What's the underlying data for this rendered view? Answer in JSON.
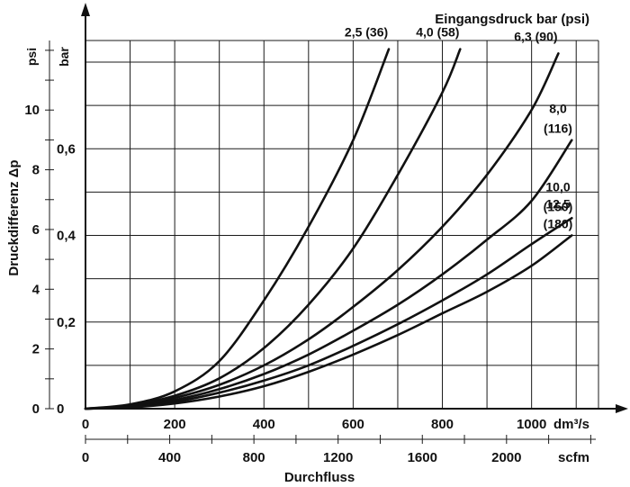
{
  "chart_data": {
    "type": "line",
    "title": "Eingangsdruck bar (psi)",
    "xlabel": "Durchfluss",
    "ylabel": "Druckdifferenz Δp",
    "x_primary": {
      "unit": "dm³/s",
      "range": [
        0,
        1150
      ],
      "ticks": [
        "0",
        "200",
        "400",
        "600",
        "800",
        "1000"
      ]
    },
    "x_secondary": {
      "unit": "scfm",
      "ticks": [
        "0",
        "400",
        "800",
        "1200",
        "1600",
        "2000"
      ]
    },
    "y_primary": {
      "unit": "bar",
      "range": [
        0,
        0.85
      ],
      "ticks": [
        "0",
        "0,2",
        "0,4",
        "0,6"
      ]
    },
    "y_secondary": {
      "unit": "psi",
      "ticks": [
        "0",
        "2",
        "4",
        "6",
        "8",
        "10"
      ]
    },
    "grid": true,
    "series": [
      {
        "name": "2,5 (36)",
        "name_lines": [
          "2,5 (36)"
        ],
        "x": [
          0,
          100,
          200,
          300,
          400,
          500,
          600,
          680
        ],
        "y": [
          0,
          0.01,
          0.04,
          0.11,
          0.25,
          0.42,
          0.62,
          0.83
        ]
      },
      {
        "name": "4,0 (58)",
        "name_lines": [
          "4,0 (58)"
        ],
        "x": [
          0,
          100,
          200,
          300,
          400,
          500,
          600,
          700,
          800,
          840
        ],
        "y": [
          0,
          0.008,
          0.03,
          0.07,
          0.14,
          0.24,
          0.37,
          0.54,
          0.73,
          0.83
        ]
      },
      {
        "name": "6,3 (90)",
        "name_lines": [
          "6,3 (90)"
        ],
        "x": [
          0,
          100,
          200,
          300,
          400,
          500,
          600,
          700,
          800,
          900,
          1000,
          1060
        ],
        "y": [
          0,
          0.006,
          0.025,
          0.055,
          0.1,
          0.16,
          0.235,
          0.32,
          0.42,
          0.54,
          0.69,
          0.82
        ]
      },
      {
        "name": "8,0 (116)",
        "name_lines": [
          "8,0",
          "(116)"
        ],
        "x": [
          0,
          100,
          200,
          300,
          400,
          500,
          600,
          700,
          800,
          900,
          1000,
          1090
        ],
        "y": [
          0,
          0.005,
          0.02,
          0.045,
          0.08,
          0.125,
          0.18,
          0.24,
          0.31,
          0.39,
          0.48,
          0.62
        ]
      },
      {
        "name": "10,0 (150)",
        "name_lines": [
          "10,0",
          "(150)"
        ],
        "x": [
          0,
          100,
          200,
          300,
          400,
          500,
          600,
          700,
          800,
          900,
          1000,
          1090
        ],
        "y": [
          0,
          0.004,
          0.016,
          0.037,
          0.065,
          0.1,
          0.145,
          0.195,
          0.25,
          0.31,
          0.38,
          0.44
        ]
      },
      {
        "name": "12,5 (180)",
        "name_lines": [
          "12,5",
          "(180)"
        ],
        "x": [
          0,
          100,
          200,
          300,
          400,
          500,
          600,
          700,
          800,
          900,
          1000,
          1090
        ],
        "y": [
          0,
          0.003,
          0.012,
          0.028,
          0.052,
          0.085,
          0.125,
          0.17,
          0.22,
          0.27,
          0.33,
          0.4
        ]
      }
    ]
  }
}
